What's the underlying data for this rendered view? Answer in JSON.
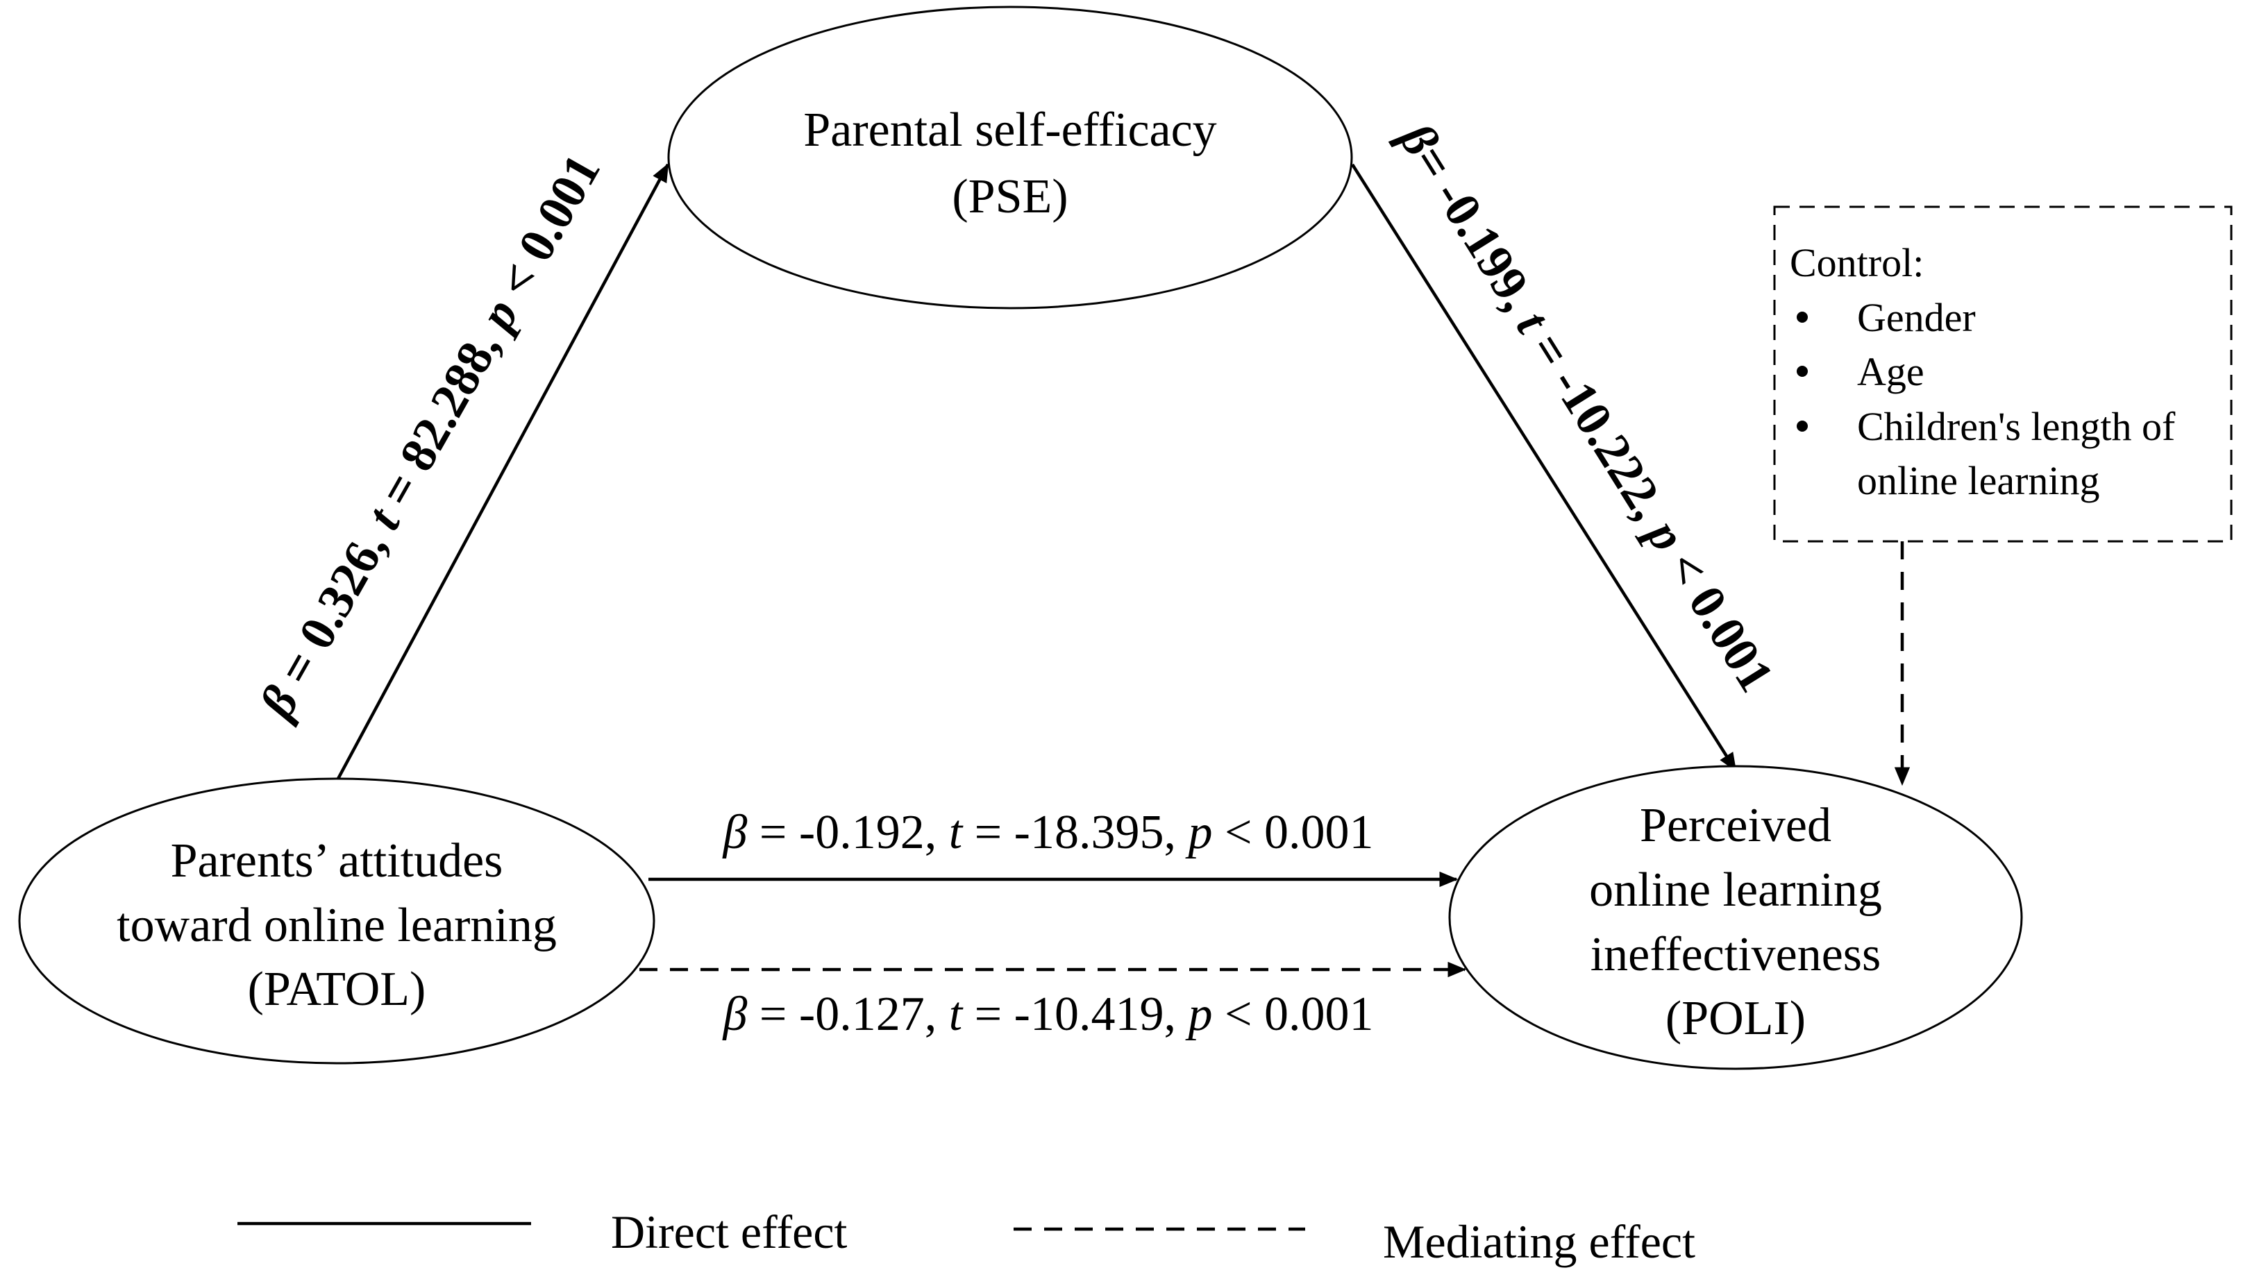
{
  "nodes": {
    "pse": {
      "line1": "Parental self-efficacy",
      "line2": "(PSE)"
    },
    "patol": {
      "line1": "Parents’ attitudes",
      "line2": "toward  online learning",
      "line3": "(PATOL)"
    },
    "poli": {
      "line1": "Perceived",
      "line2": "online learning",
      "line3": "ineffectiveness",
      "line4": "(POLI)"
    }
  },
  "paths": {
    "patol_pse": {
      "beta_sym": "β",
      "beta_val": " = 0.326, ",
      "t_sym": "t",
      "t_val": " = 82.288, ",
      "p_sym": "p",
      "p_val": " < 0.001"
    },
    "pse_poli": {
      "beta_sym": "β",
      "beta_val": "= -0.199, ",
      "t_sym": "t",
      "t_val": " = -10.222, ",
      "p_sym": "p",
      "p_val": " < 0.001"
    },
    "direct": {
      "beta_sym": "β",
      "beta_val": " = -0.192, ",
      "t_sym": "t",
      "t_val": " = -18.395, ",
      "p_sym": "p",
      "p_val": " < 0.001"
    },
    "mediating": {
      "beta_sym": "β",
      "beta_val": " = -0.127, ",
      "t_sym": "t",
      "t_val": " = -10.419, ",
      "p_sym": "p",
      "p_val": " < 0.001"
    }
  },
  "control": {
    "title": "Control:",
    "items": [
      "Gender",
      "Age",
      "Children's length of",
      "online learning"
    ]
  },
  "legend": {
    "direct": "Direct effect",
    "mediating": "Mediating effect"
  }
}
